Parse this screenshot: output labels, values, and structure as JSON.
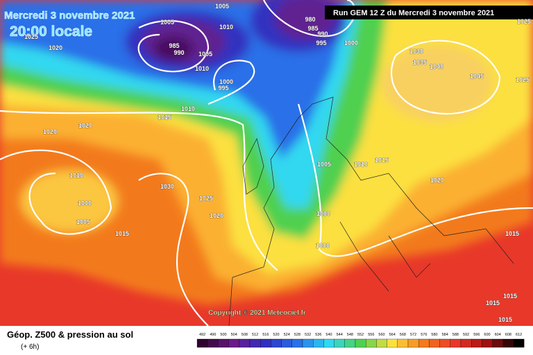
{
  "header": {
    "date": "Mercredi 3 novembre 2021",
    "time": "20:00 locale",
    "run": "Run GEM 12 Z du Mercredi 3 novembre 2021"
  },
  "copyright": "Copyright © 2021 Meteociel.fr",
  "footer": {
    "title": "Géop. Z500 & pression au sol",
    "subtitle": "(+ 6h)"
  },
  "scale": {
    "labels": [
      492,
      496,
      500,
      504,
      508,
      512,
      516,
      520,
      524,
      528,
      532,
      536,
      540,
      544,
      548,
      552,
      556,
      560,
      564,
      568,
      572,
      576,
      580,
      584,
      588,
      592,
      596,
      600,
      604,
      608,
      612
    ]
  },
  "isobars": [
    "1005",
    "1010",
    "1005",
    "985",
    "990",
    "1005",
    "1010",
    "1000",
    "995",
    "980",
    "985",
    "990",
    "995",
    "1000",
    "1030",
    "1035",
    "1040",
    "1045",
    "1020",
    "1025",
    "1010",
    "1015",
    "1020",
    "1020",
    "1010",
    "1000",
    "1005",
    "1030",
    "1025",
    "1020",
    "1015",
    "1005",
    "1010",
    "1015",
    "1020",
    "1000",
    "1000",
    "1015",
    "1015",
    "1015",
    "1015",
    "1025",
    "1025"
  ]
}
